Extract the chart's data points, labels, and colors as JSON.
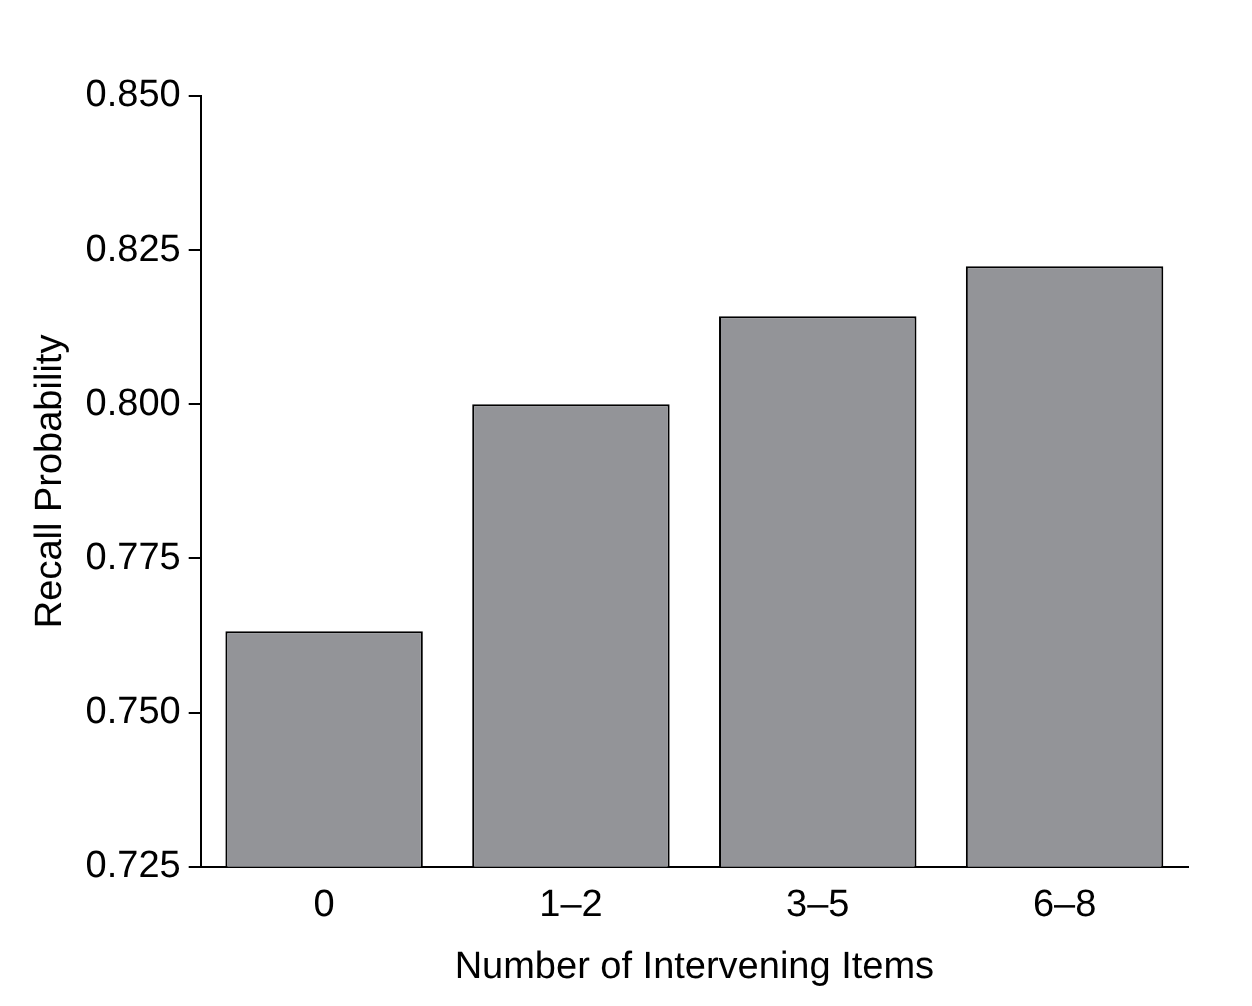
{
  "chart_data": {
    "type": "bar",
    "xlabel": "Number of Intervening Items",
    "ylabel": "Recall Probability",
    "categories": [
      "0",
      "1–2",
      "3–5",
      "6–8"
    ],
    "values": [
      0.7632,
      0.8,
      0.8143,
      0.8224
    ],
    "color": "#939498",
    "ylim": [
      0.725,
      0.85
    ],
    "yticks": [
      {
        "value": 0.725,
        "label": "0.725"
      },
      {
        "value": 0.75,
        "label": "0.750"
      },
      {
        "value": 0.775,
        "label": "0.775"
      },
      {
        "value": 0.8,
        "label": "0.800"
      },
      {
        "value": 0.825,
        "label": "0.825"
      },
      {
        "value": 0.85,
        "label": "0.850"
      }
    ],
    "grid": false,
    "legend": false
  }
}
